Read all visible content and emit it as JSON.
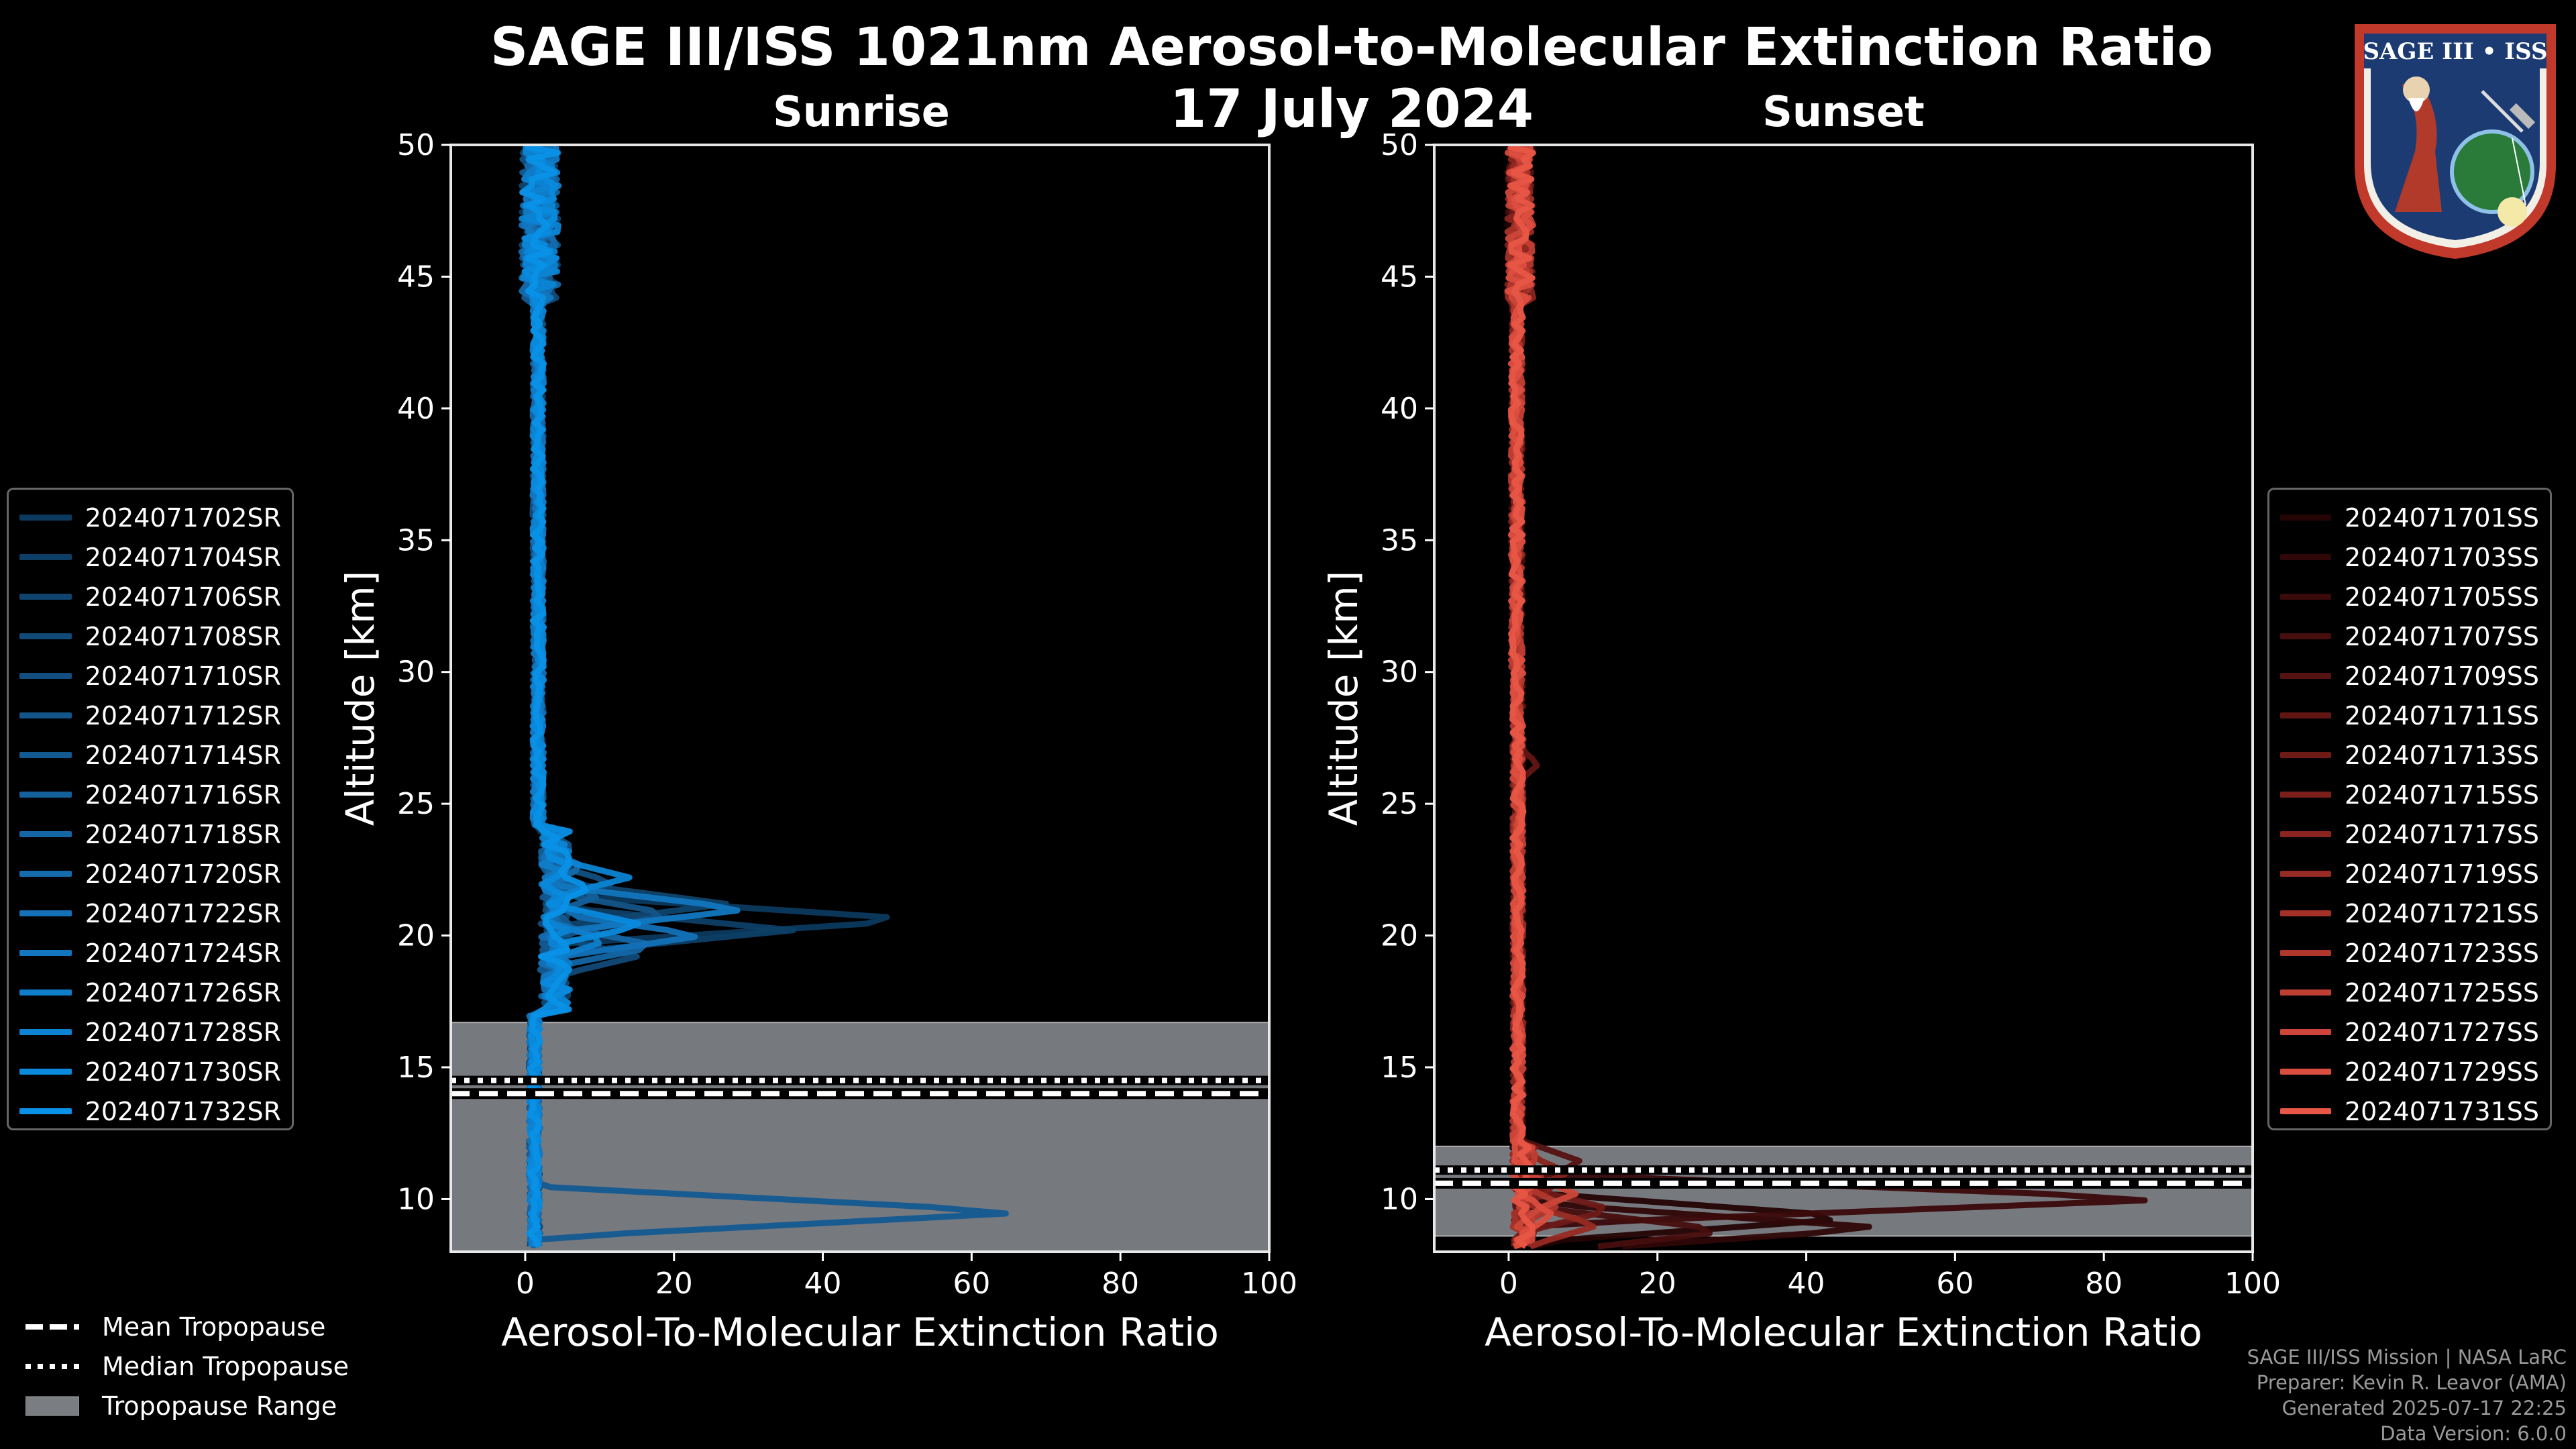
{
  "title_line1": "SAGE III/ISS 1021nm Aerosol-to-Molecular Extinction Ratio",
  "title_line2": "17 July 2024",
  "badge": {
    "name": "SAGE III • ISS"
  },
  "credits": {
    "line1": "SAGE III/ISS Mission | NASA LaRC",
    "line2": "Preparer: Kevin R. Leavor (AMA)",
    "line3": "Generated 2025-07-17 22:25",
    "line4": "Data Version: 6.0.0"
  },
  "bottom_legend": {
    "mean": "Mean Tropopause",
    "median": "Median Tropopause",
    "range": "Tropopause Range"
  },
  "chart_data": [
    {
      "type": "line",
      "title": "Sunrise",
      "xlabel": "Aerosol-To-Molecular Extinction Ratio",
      "ylabel": "Altitude [km]",
      "xlim": [
        -10,
        100
      ],
      "ylim": [
        8,
        50
      ],
      "xticks": [
        0,
        20,
        40,
        60,
        80,
        100
      ],
      "yticks": [
        10,
        15,
        20,
        25,
        30,
        35,
        40,
        45,
        50
      ],
      "tropopause": {
        "mean": 14.0,
        "median": 14.5,
        "range": [
          8,
          16.7
        ]
      },
      "legend_entries": [
        "2024071702SR",
        "2024071704SR",
        "2024071706SR",
        "2024071708SR",
        "2024071710SR",
        "2024071712SR",
        "2024071714SR",
        "2024071716SR",
        "2024071718SR",
        "2024071720SR",
        "2024071722SR",
        "2024071724SR",
        "2024071726SR",
        "2024071728SR",
        "2024071730SR",
        "2024071732SR"
      ],
      "colors": [
        "#0b3a5e",
        "#0d3f66",
        "#0f446e",
        "#114a77",
        "#124f80",
        "#135589",
        "#135a92",
        "#14609b",
        "#1466a4",
        "#146bae",
        "#1371b7",
        "#1277c0",
        "#107dca",
        "#0c84d3",
        "#0a8add",
        "#0891e6"
      ],
      "profile_peaks": [
        {
          "alt": 20.6,
          "value": 54
        },
        {
          "alt": 20.2,
          "value": 36
        },
        {
          "alt": 21.2,
          "value": 27
        },
        {
          "alt": 19.2,
          "value": 15
        },
        {
          "alt": 22.0,
          "value": 12
        },
        {
          "alt": 20.8,
          "value": 20
        },
        {
          "alt": 9.5,
          "value": 68
        },
        {
          "alt": 21.5,
          "value": 10
        },
        {
          "alt": 19.6,
          "value": 18
        },
        {
          "alt": 22.6,
          "value": 8
        },
        {
          "alt": 20.0,
          "value": 24
        },
        {
          "alt": 21.0,
          "value": 30
        },
        {
          "alt": 19.8,
          "value": 11
        },
        {
          "alt": 22.2,
          "value": 14
        },
        {
          "alt": 20.4,
          "value": 16
        },
        {
          "alt": 21.8,
          "value": 9
        }
      ]
    },
    {
      "type": "line",
      "title": "Sunset",
      "xlabel": "Aerosol-To-Molecular Extinction Ratio",
      "ylabel": "Altitude [km]",
      "xlim": [
        -10,
        100
      ],
      "ylim": [
        8,
        50
      ],
      "xticks": [
        0,
        20,
        40,
        60,
        80,
        100
      ],
      "yticks": [
        10,
        15,
        20,
        25,
        30,
        35,
        40,
        45,
        50
      ],
      "tropopause": {
        "mean": 10.6,
        "median": 11.1,
        "range": [
          8.6,
          12.0
        ]
      },
      "legend_entries": [
        "2024071701SS",
        "2024071703SS",
        "2024071705SS",
        "2024071707SS",
        "2024071709SS",
        "2024071711SS",
        "2024071713SS",
        "2024071715SS",
        "2024071717SS",
        "2024071719SS",
        "2024071721SS",
        "2024071723SS",
        "2024071725SS",
        "2024071727SS",
        "2024071729SS",
        "2024071731SS"
      ],
      "colors": [
        "#240405",
        "#2f0708",
        "#3b0a0b",
        "#470e0e",
        "#541211",
        "#611614",
        "#6e1a17",
        "#7c1f1b",
        "#89241f",
        "#972a23",
        "#a43128",
        "#b1372d",
        "#bf3e33",
        "#cd4639",
        "#db4e3f",
        "#e85646"
      ],
      "profile_peaks": [
        {
          "alt": 9.3,
          "value": 48
        },
        {
          "alt": 8.9,
          "value": 51
        },
        {
          "alt": 10.0,
          "value": 90
        },
        {
          "alt": 8.8,
          "value": 30
        },
        {
          "alt": 11.4,
          "value": 10
        },
        {
          "alt": 26.5,
          "value": 4
        },
        {
          "alt": 9.6,
          "value": 14
        },
        {
          "alt": 10.4,
          "value": 6
        },
        {
          "alt": 11.0,
          "value": 8
        },
        {
          "alt": 9.0,
          "value": 12
        },
        {
          "alt": 10.8,
          "value": 5
        },
        {
          "alt": 9.8,
          "value": 7
        },
        {
          "alt": 11.6,
          "value": 4
        },
        {
          "alt": 10.2,
          "value": 9
        },
        {
          "alt": 9.4,
          "value": 6
        },
        {
          "alt": 11.2,
          "value": 3
        }
      ]
    }
  ]
}
